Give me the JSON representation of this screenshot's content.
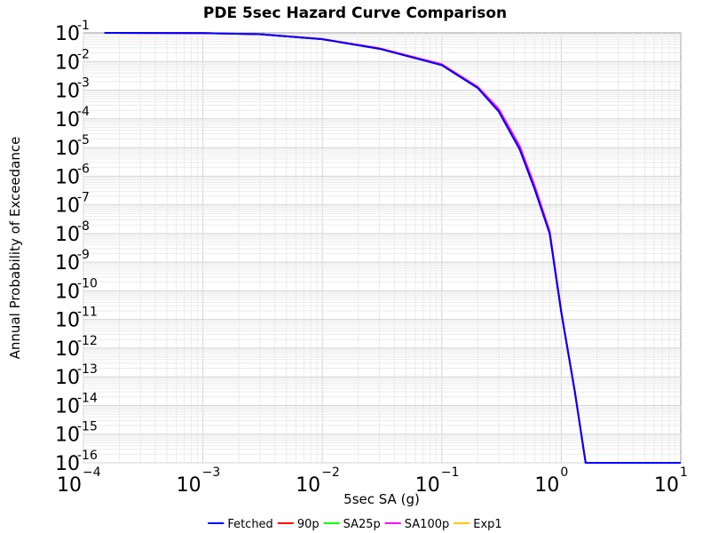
{
  "chart_data": {
    "type": "line",
    "title": "PDE 5sec Hazard Curve Comparison",
    "xlabel": "5sec SA (g)",
    "ylabel": "Annual Probability of Exceedance",
    "x_scale": "log",
    "y_scale": "log",
    "xlim": [
      0.0001,
      10
    ],
    "ylim": [
      1e-16,
      0.1
    ],
    "grid": true,
    "legend_position": "bottom",
    "x_ticks": [
      {
        "base": "10",
        "exp": "−4"
      },
      {
        "base": "10",
        "exp": "−3"
      },
      {
        "base": "10",
        "exp": "−2"
      },
      {
        "base": "10",
        "exp": "−1"
      },
      {
        "base": "10",
        "exp": "0"
      },
      {
        "base": "10",
        "exp": "1"
      }
    ],
    "y_ticks": [
      {
        "base": "10",
        "exp": "-1"
      },
      {
        "base": "10",
        "exp": "-2"
      },
      {
        "base": "10",
        "exp": "-3"
      },
      {
        "base": "10",
        "exp": "-4"
      },
      {
        "base": "10",
        "exp": "-5"
      },
      {
        "base": "10",
        "exp": "-6"
      },
      {
        "base": "10",
        "exp": "-7"
      },
      {
        "base": "10",
        "exp": "-8"
      },
      {
        "base": "10",
        "exp": "-9"
      },
      {
        "base": "10",
        "exp": "-10"
      },
      {
        "base": "10",
        "exp": "-11"
      },
      {
        "base": "10",
        "exp": "-12"
      },
      {
        "base": "10",
        "exp": "-13"
      },
      {
        "base": "10",
        "exp": "-14"
      },
      {
        "base": "10",
        "exp": "-15"
      },
      {
        "base": "10",
        "exp": "-16"
      }
    ],
    "series": [
      {
        "name": "Fetched",
        "color": "#0000ff",
        "x": [
          0.00015,
          0.001,
          0.003,
          0.01,
          0.03,
          0.1,
          0.2,
          0.3,
          0.45,
          0.6,
          0.8,
          1.0,
          1.3,
          1.6,
          10
        ],
        "y": [
          0.1,
          0.098,
          0.09,
          0.06,
          0.028,
          0.0075,
          0.0012,
          0.00018,
          8.5e-06,
          3.5e-07,
          1e-08,
          1.8e-11,
          3e-14,
          1e-16,
          1e-16
        ]
      },
      {
        "name": "90p",
        "color": "#ff0000",
        "x": [
          0.00015,
          0.001,
          0.003,
          0.01,
          0.03,
          0.1,
          0.2,
          0.3,
          0.45,
          0.6,
          0.8,
          1.0,
          1.3,
          1.6,
          10
        ],
        "y": [
          0.1,
          0.098,
          0.09,
          0.06,
          0.028,
          0.0075,
          0.0012,
          0.00018,
          8.5e-06,
          3.5e-07,
          1e-08,
          1.8e-11,
          3e-14,
          1e-16,
          1e-16
        ]
      },
      {
        "name": "SA25p",
        "color": "#00ff00",
        "x": [
          0.00015,
          0.001,
          0.003,
          0.01,
          0.03,
          0.1,
          0.2,
          0.3,
          0.45,
          0.6,
          0.8,
          1.0,
          1.3,
          1.6,
          10
        ],
        "y": [
          0.1,
          0.098,
          0.09,
          0.06,
          0.028,
          0.0075,
          0.0012,
          0.00018,
          8.5e-06,
          3.5e-07,
          1e-08,
          1.8e-11,
          3e-14,
          1e-16,
          1e-16
        ]
      },
      {
        "name": "SA100p",
        "color": "#ff00ff",
        "x": [
          0.00015,
          0.001,
          0.003,
          0.01,
          0.03,
          0.1,
          0.2,
          0.3,
          0.45,
          0.6,
          0.8,
          1.0,
          1.3,
          1.6,
          10
        ],
        "y": [
          0.1,
          0.098,
          0.09,
          0.061,
          0.029,
          0.008,
          0.0013,
          0.00022,
          1.1e-05,
          4.5e-07,
          1.2e-08,
          2e-11,
          3e-14,
          1e-16,
          1e-16
        ]
      },
      {
        "name": "Exp1",
        "color": "#ffc800",
        "x": [
          0.00015,
          0.001,
          0.003,
          0.01,
          0.03,
          0.1,
          0.2,
          0.3,
          0.45,
          0.6,
          0.8,
          1.0,
          1.3,
          1.6,
          10
        ],
        "y": [
          0.1,
          0.098,
          0.09,
          0.06,
          0.028,
          0.0075,
          0.0012,
          0.00018,
          8.5e-06,
          3.5e-07,
          1e-08,
          1.8e-11,
          3e-14,
          1e-16,
          1e-16
        ]
      }
    ]
  }
}
